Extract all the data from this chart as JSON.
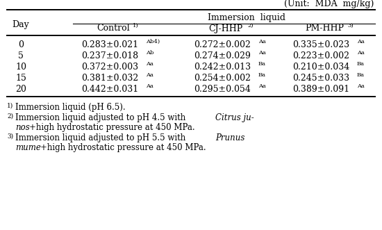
{
  "unit_label": "(Unit:  MDA  mg/kg)",
  "rows": [
    {
      "day": "0",
      "control": "0.283±0.021",
      "control_sup": "Ab4)",
      "cj": "0.272±0.002",
      "cj_sup": "Aa",
      "pm": "0.335±0.023",
      "pm_sup": "Aa"
    },
    {
      "day": "5",
      "control": "0.237±0.018",
      "control_sup": "Ab",
      "cj": "0.274±0.029",
      "cj_sup": "Aa",
      "pm": "0.223±0.002",
      "pm_sup": "Aa"
    },
    {
      "day": "10",
      "control": "0.372±0.003",
      "control_sup": "Aa",
      "cj": "0.242±0.013",
      "cj_sup": "Ba",
      "pm": "0.210±0.034",
      "pm_sup": "Ba"
    },
    {
      "day": "15",
      "control": "0.381±0.032",
      "control_sup": "Aa",
      "cj": "0.254±0.002",
      "cj_sup": "Ba",
      "pm": "0.245±0.033",
      "pm_sup": "Ba"
    },
    {
      "day": "20",
      "control": "0.442±0.031",
      "control_sup": "Aa",
      "cj": "0.295±0.054",
      "cj_sup": "Aa",
      "pm": "0.389±0.091",
      "pm_sup": "Aa"
    }
  ],
  "bg_color": "white",
  "text_color": "black",
  "font_size": 9.0,
  "sup_font_size": 6.0
}
